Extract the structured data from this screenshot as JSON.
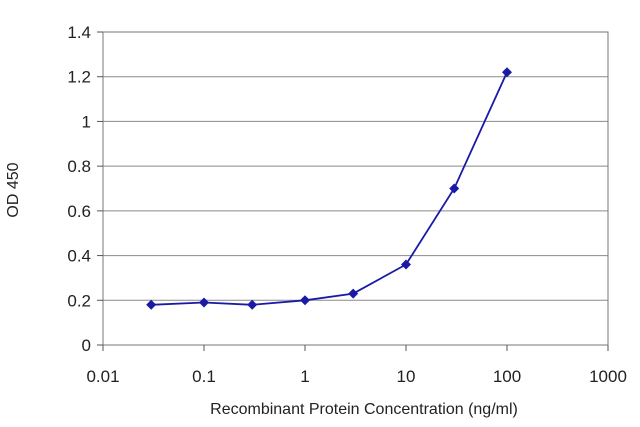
{
  "chart_data": {
    "type": "line",
    "title": "",
    "xlabel": "Recombinant Protein Concentration (ng/ml)",
    "ylabel": "OD 450",
    "x_scale": "log",
    "xlim": [
      0.01,
      1000
    ],
    "ylim": [
      0,
      1.4
    ],
    "x_ticks": [
      "0.01",
      "0.1",
      "1",
      "10",
      "100",
      "1000"
    ],
    "x_tick_values": [
      0.01,
      0.1,
      1,
      10,
      100,
      1000
    ],
    "y_ticks": [
      "0",
      "0.2",
      "0.4",
      "0.6",
      "0.8",
      "1",
      "1.2",
      "1.4"
    ],
    "y_tick_values": [
      0,
      0.2,
      0.4,
      0.6,
      0.8,
      1,
      1.2,
      1.4
    ],
    "grid": "horizontal",
    "legend": "none",
    "series": [
      {
        "x": [
          0.03,
          0.1,
          0.3,
          1,
          3,
          10,
          30,
          100
        ],
        "y": [
          0.18,
          0.19,
          0.18,
          0.2,
          0.23,
          0.36,
          0.7,
          1.22
        ],
        "color": "#1a1aa6",
        "marker": "diamond"
      }
    ]
  }
}
